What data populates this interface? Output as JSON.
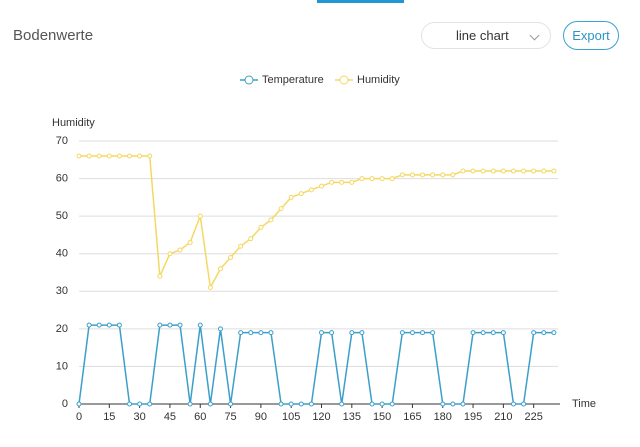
{
  "header": {
    "title": "Bodenwerte",
    "dropdown": "line chart",
    "button": "Export"
  },
  "chart_data": {
    "type": "line",
    "y_label": "Humidity",
    "x_label": "Time",
    "x": [
      0,
      5,
      10,
      15,
      20,
      25,
      30,
      35,
      40,
      45,
      50,
      55,
      60,
      65,
      70,
      75,
      80,
      85,
      90,
      95,
      100,
      105,
      110,
      115,
      120,
      125,
      130,
      135,
      140,
      145,
      150,
      155,
      160,
      165,
      170,
      175,
      180,
      185,
      190,
      195,
      200,
      205,
      210,
      215,
      220,
      225,
      230,
      235
    ],
    "series": [
      {
        "name": "Temperature",
        "color": "#3c9fc9",
        "values": [
          0,
          21,
          21,
          21,
          21,
          0,
          0,
          0,
          21,
          21,
          21,
          0,
          21,
          0,
          20,
          0,
          19,
          19,
          19,
          19,
          0,
          0,
          0,
          0,
          19,
          19,
          0,
          19,
          19,
          0,
          0,
          0,
          19,
          19,
          19,
          19,
          0,
          0,
          0,
          19,
          19,
          19,
          19,
          0,
          0,
          19,
          19,
          19
        ]
      },
      {
        "name": "Humidity",
        "color": "#f5d862",
        "values": [
          66,
          66,
          66,
          66,
          66,
          66,
          66,
          66,
          34,
          40,
          41,
          43,
          50,
          31,
          36,
          39,
          42,
          44,
          47,
          49,
          52,
          55,
          56,
          57,
          58,
          59,
          59,
          59,
          60,
          60,
          60,
          60,
          61,
          61,
          61,
          61,
          61,
          61,
          62,
          62,
          62,
          62,
          62,
          62,
          62,
          62,
          62,
          62
        ]
      }
    ],
    "xlim": [
      0,
      240
    ],
    "xticks": [
      0,
      15,
      30,
      45,
      60,
      75,
      90,
      105,
      120,
      135,
      150,
      165,
      180,
      195,
      210,
      225
    ],
    "ylim": [
      0,
      70
    ],
    "yticks": [
      0,
      10,
      20,
      30,
      40,
      50,
      60,
      70
    ],
    "grid": true
  }
}
